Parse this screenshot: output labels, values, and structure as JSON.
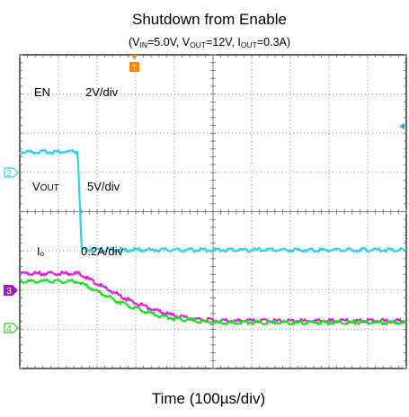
{
  "chart_data": {
    "type": "line",
    "title": "Shutdown from Enable",
    "subtitle_parts": [
      "(V",
      "IN",
      "=5.0V, V",
      "OUT",
      "=12V, I",
      "OUT",
      "=0.3A)"
    ],
    "xlabel": "Time (100µs/div)",
    "grid": true,
    "x_divisions": 10,
    "y_divisions": 8,
    "x": [
      0,
      1.5,
      1.6,
      2.0,
      2.5,
      3.0,
      3.5,
      4.0,
      4.5,
      5.0,
      5.5,
      6.0,
      7.0,
      8.0,
      10.0
    ],
    "series": [
      {
        "name": "EN",
        "scale": "2V/div",
        "color": "#33d0e6",
        "marker": "2",
        "marker_color": "#33d0e6",
        "zero_div": 3.0,
        "values": [
          5.0,
          5.0,
          0.0,
          0.0,
          0.0,
          0.0,
          0.0,
          0.0,
          0.0,
          0.0,
          0.0,
          0.0,
          0.0,
          0.0,
          0.0
        ]
      },
      {
        "name": "VOUT",
        "label_main": "V",
        "label_sub": "OUT",
        "scale": "5V/div",
        "color": "#e020e0",
        "values": [
          12.0,
          12.0,
          11.8,
          10.7,
          9.4,
          8.2,
          7.3,
          6.6,
          6.2,
          6.0,
          5.95,
          5.95,
          5.95,
          5.95,
          5.95
        ]
      },
      {
        "name": "Io",
        "label_main": "I",
        "label_sub": "o",
        "scale": "0.2A/div",
        "color": "#22dd22",
        "marker": "4",
        "marker_color": "#22cc22",
        "zero_div": 0.7,
        "values": [
          0.3,
          0.3,
          0.29,
          0.25,
          0.2,
          0.16,
          0.13,
          0.11,
          0.1,
          0.09,
          0.09,
          0.09,
          0.09,
          0.09,
          0.09
        ]
      }
    ],
    "extra_markers": [
      {
        "text": "3",
        "color": "#9b1fb0"
      }
    ],
    "trigger_marker": {
      "text": "T",
      "color": "#ff8800"
    }
  }
}
